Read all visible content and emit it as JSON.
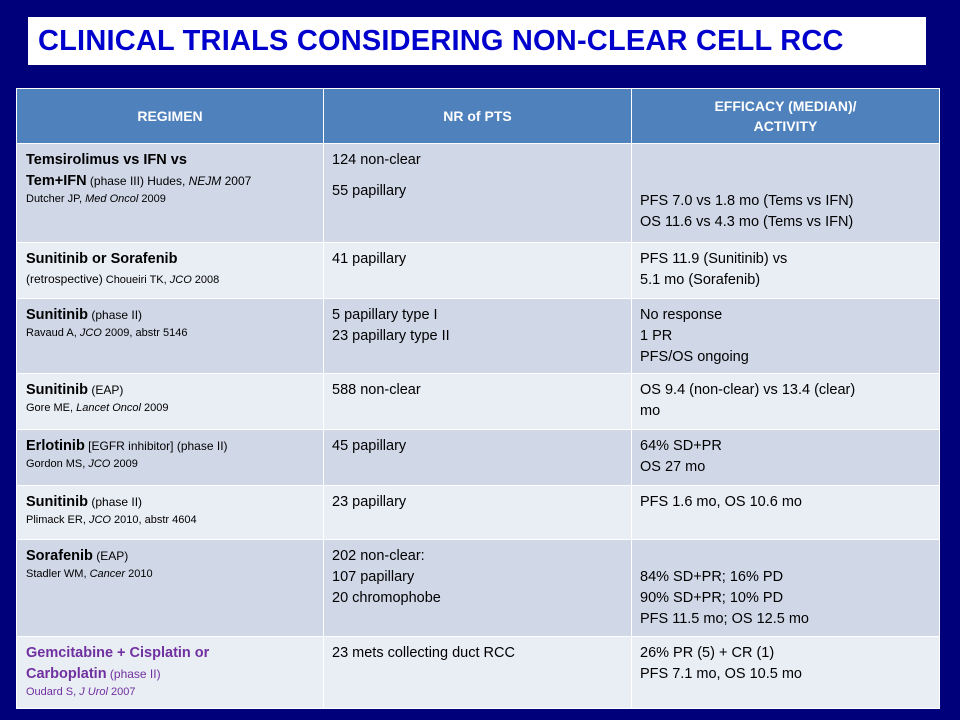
{
  "title": "CLINICAL TRIALS CONSIDERING NON-CLEAR CELL RCC",
  "headers": {
    "regimen": "REGIMEN",
    "nr_pts": "NR of PTS",
    "efficacy_line1": "EFFICACY (MEDIAN)/",
    "efficacy_line2": "ACTIVITY"
  },
  "rows": [
    {
      "drug_line1": "Temsirolimus vs IFN vs",
      "drug_line2": "Tem+IFN",
      "phase": " (phase III) Hudes, ",
      "journal": "NEJM",
      "year": " 2007",
      "ref2_author": "Dutcher JP, ",
      "ref2_journal": "Med Oncol",
      "ref2_year": " 2009",
      "pts": [
        "124 non-clear",
        "55 papillary"
      ],
      "efficacy": [
        "PFS 7.0 vs 1.8 mo (Tems vs IFN)",
        "OS 11.6 vs 4.3 mo (Tems vs IFN)"
      ]
    },
    {
      "drug": "Sunitinib or Sorafenib",
      "phase": "(retrospective)",
      "ref_author": " Choueiri TK, ",
      "ref_journal": "JCO",
      "ref_year": " 2008",
      "pts": [
        "41 papillary"
      ],
      "efficacy": [
        "PFS 11.9 (Sunitinib) vs",
        "5.1 mo (Sorafenib)"
      ]
    },
    {
      "drug": "Sunitinib",
      "phase": " (phase II)",
      "ref_author": "Ravaud A, ",
      "ref_journal": "JCO",
      "ref_year": " 2009, abstr 5146",
      "pts": [
        "5 papillary type I",
        "23 papillary type II"
      ],
      "efficacy": [
        "No response",
        "1 PR",
        "PFS/OS ongoing"
      ]
    },
    {
      "drug": "Sunitinib",
      "phase": " (EAP)",
      "ref_author": "Gore ME, ",
      "ref_journal": "Lancet Oncol",
      "ref_year": " 2009",
      "pts": [
        "588 non-clear"
      ],
      "efficacy": [
        "OS 9.4 (non-clear) vs 13.4 (clear)",
        "mo"
      ]
    },
    {
      "drug": "Erlotinib",
      "phase": " [EGFR inhibitor] (phase II)",
      "ref_author": "Gordon MS, ",
      "ref_journal": "JCO",
      "ref_year": " 2009",
      "pts": [
        "45 papillary"
      ],
      "efficacy": [
        "64% SD+PR",
        "OS 27 mo"
      ]
    },
    {
      "drug": "Sunitinib",
      "phase": " (phase II)",
      "ref_author": "Plimack ER, ",
      "ref_journal": "JCO",
      "ref_year": " 2010, abstr 4604",
      "pts": [
        "23 papillary"
      ],
      "efficacy": [
        "PFS 1.6 mo, OS 10.6 mo"
      ]
    },
    {
      "drug": "Sorafenib",
      "phase": " (EAP)",
      "ref_author": "Stadler WM, ",
      "ref_journal": "Cancer",
      "ref_year": " 2010",
      "pts": [
        "202 non-clear:",
        "107 papillary",
        "20 chromophobe"
      ],
      "efficacy": [
        "84% SD+PR; 16% PD",
        "90% SD+PR; 10% PD",
        "PFS 11.5 mo; OS 12.5 mo"
      ]
    },
    {
      "drug_line1": "Gemcitabine + Cisplatin or",
      "drug_line2": "Carboplatin",
      "phase": " (phase II)",
      "ref_author": "Oudard S, ",
      "ref_journal": "J Urol",
      "ref_year": " 2007",
      "pts": [
        "23 mets collecting duct RCC"
      ],
      "efficacy": [
        "26% PR (5) + CR (1)",
        "PFS 7.1 mo, OS 10.5 mo"
      ]
    }
  ],
  "colors": {
    "background": "#00007a",
    "title_text": "#0000cc",
    "header_bg": "#4f81bd",
    "row_odd": "#d0d8e8",
    "row_even": "#e9edf4",
    "highlight_text": "#7030a0"
  }
}
